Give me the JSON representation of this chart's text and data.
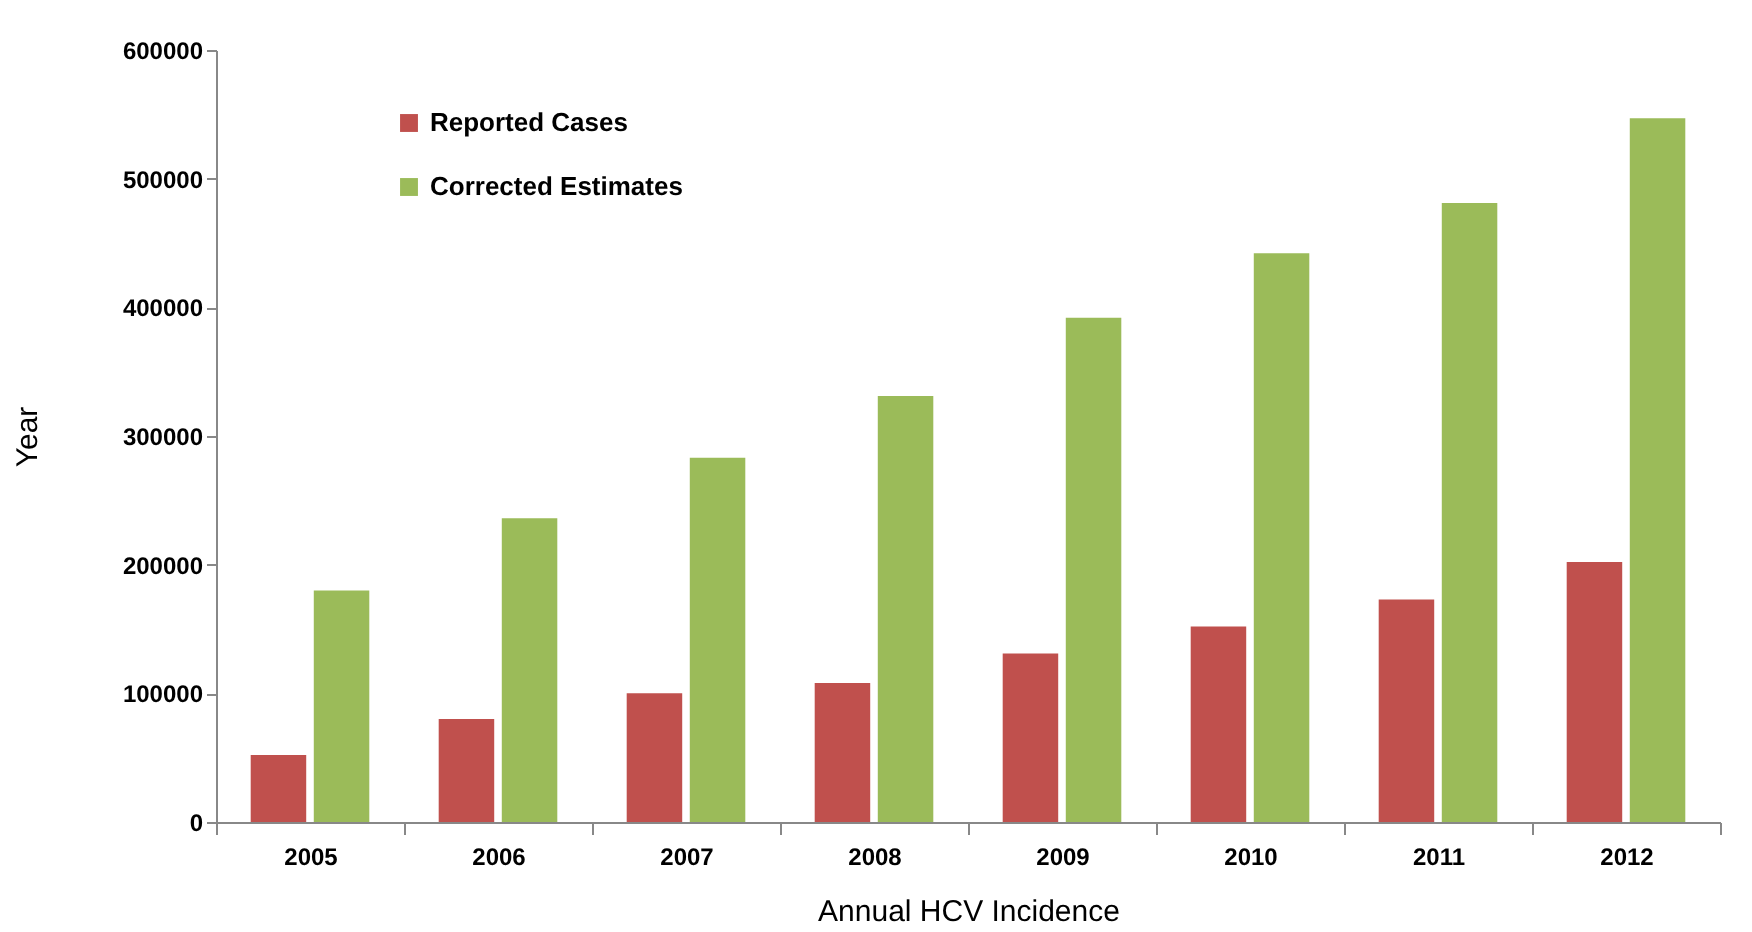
{
  "chart_data": {
    "type": "bar",
    "xlabel": "Annual HCV Incidence",
    "ylabel": "Year",
    "categories": [
      "2005",
      "2006",
      "2007",
      "2008",
      "2009",
      "2010",
      "2011",
      "2012"
    ],
    "series": [
      {
        "name": "Reported Cases",
        "color": "#c0504d",
        "values": [
          52000,
          80000,
          100000,
          108000,
          131000,
          152000,
          173000,
          202000
        ]
      },
      {
        "name": "Corrected Estimates",
        "color": "#9bbb59",
        "values": [
          180000,
          236000,
          283000,
          331000,
          392000,
          442000,
          481000,
          547000
        ]
      }
    ],
    "ylim": [
      0,
      600000
    ],
    "yticks": [
      0,
      100000,
      200000,
      300000,
      400000,
      500000,
      600000
    ],
    "grid": false,
    "legend": "top left"
  }
}
